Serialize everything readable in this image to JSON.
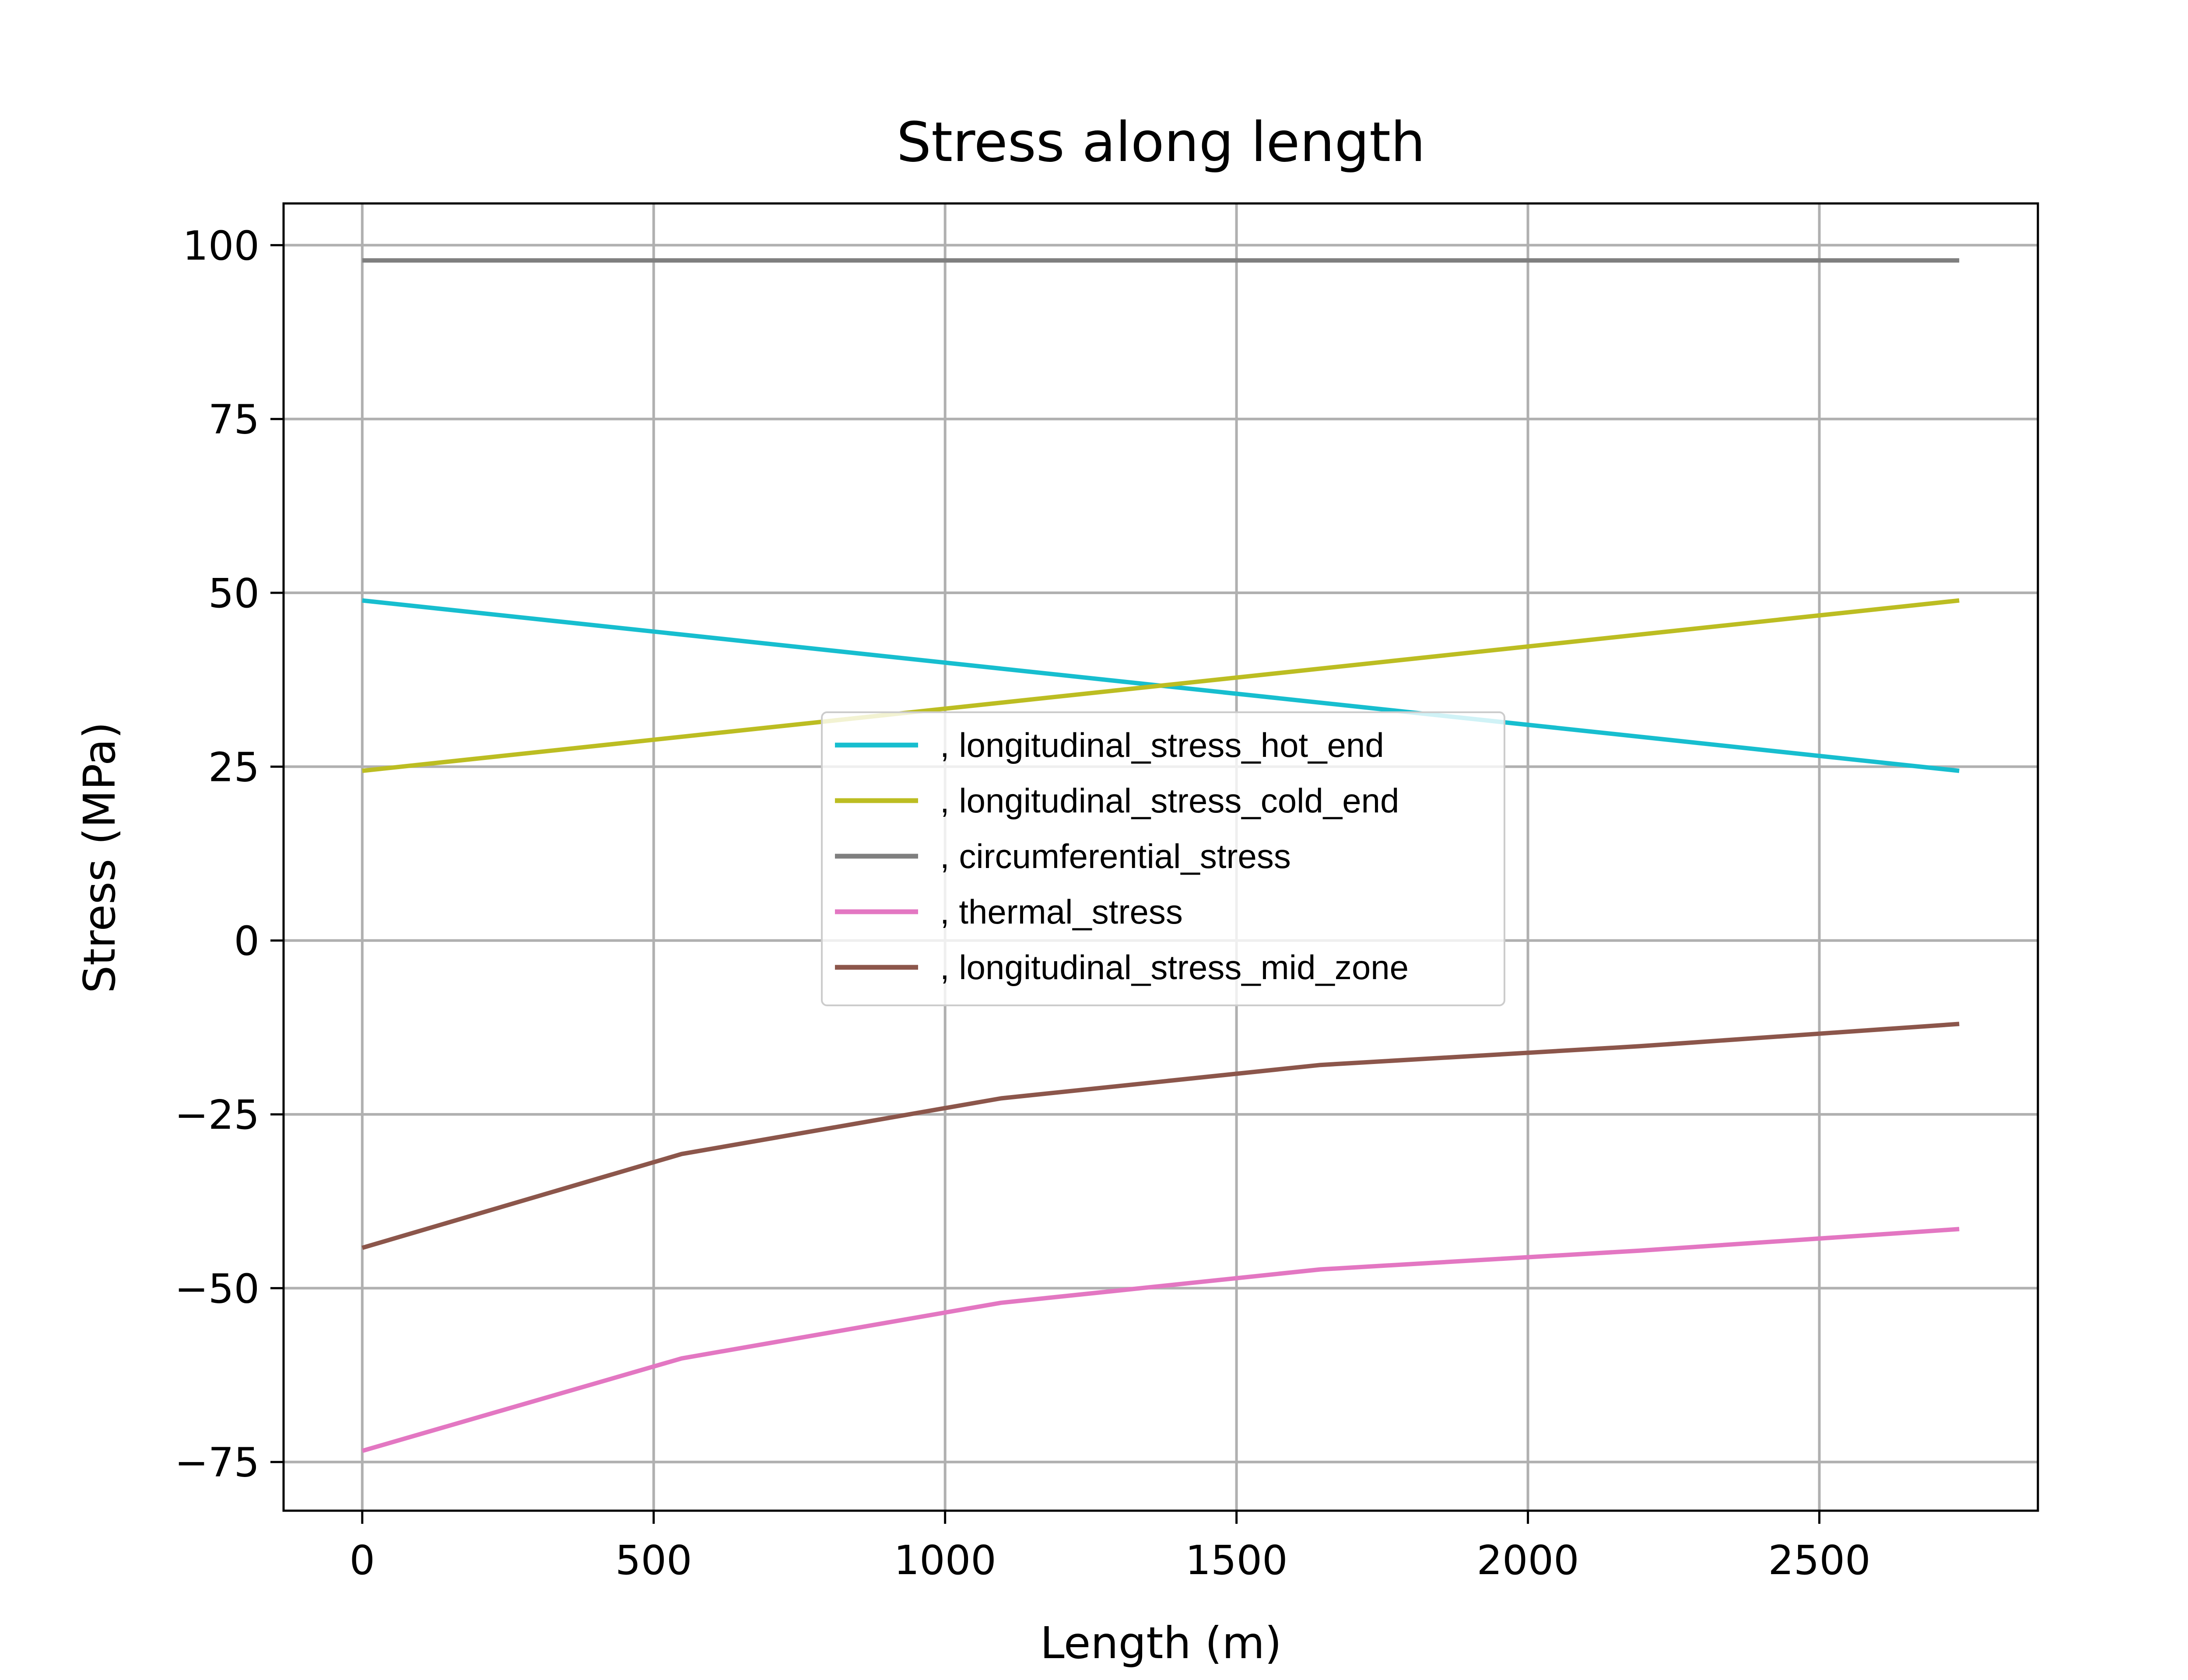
{
  "chart_data": {
    "type": "line",
    "title": "Stress along length",
    "xlabel": "Length (m)",
    "ylabel": "Stress (MPa)",
    "xlim": [
      -135,
      2875
    ],
    "ylim": [
      -82,
      106
    ],
    "xticks": [
      0,
      500,
      1000,
      1500,
      2000,
      2500
    ],
    "xtick_labels": [
      "0",
      "500",
      "1000",
      "1500",
      "2000",
      "2500"
    ],
    "yticks": [
      -75,
      -50,
      -25,
      0,
      25,
      50,
      75,
      100
    ],
    "ytick_labels": [
      "−75",
      "−50",
      "−25",
      "0",
      "25",
      "50",
      "75",
      "100"
    ],
    "grid": true,
    "legend_position": "center",
    "series": [
      {
        "name": ", longitudinal_stress_hot_end",
        "color": "#17becf",
        "x": [
          0,
          2740
        ],
        "y": [
          48.9,
          24.4
        ]
      },
      {
        "name": ", longitudinal_stress_cold_end",
        "color": "#bcbd22",
        "x": [
          0,
          2740
        ],
        "y": [
          24.4,
          48.9
        ]
      },
      {
        "name": ", circumferential_stress",
        "color": "#7f7f7f",
        "x": [
          0,
          2740
        ],
        "y": [
          97.8,
          97.8
        ]
      },
      {
        "name": ", thermal_stress",
        "color": "#e377c2",
        "x": [
          0,
          548,
          1096,
          1644,
          2192,
          2740
        ],
        "y": [
          -73.4,
          -60.1,
          -52.1,
          -47.3,
          -44.6,
          -41.5
        ]
      },
      {
        "name": ", longitudinal_stress_mid_zone",
        "color": "#8c564b",
        "x": [
          0,
          548,
          1096,
          1644,
          2192,
          2740
        ],
        "y": [
          -44.2,
          -30.7,
          -22.7,
          -17.9,
          -15.2,
          -12.0
        ]
      }
    ]
  }
}
